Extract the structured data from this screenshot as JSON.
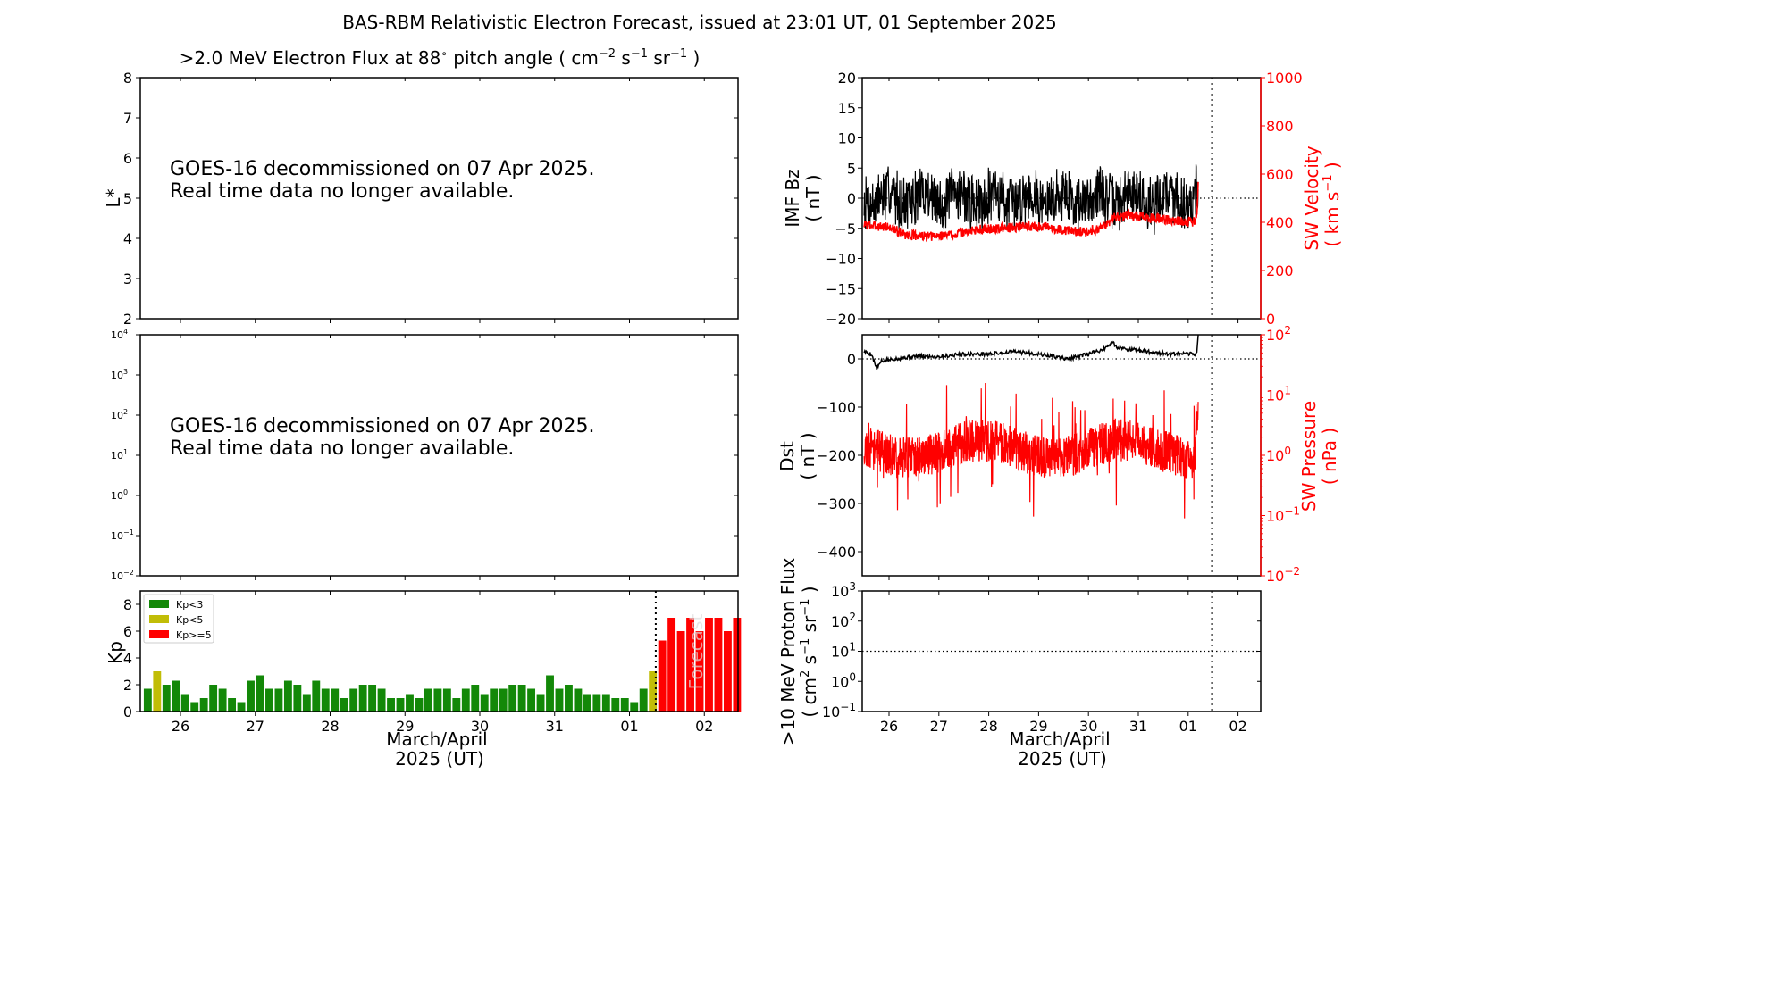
{
  "title": "BAS-RBM Relativistic Electron Forecast, issued at 23:01 UT, 01 September 2025",
  "colors": {
    "black": "#000000",
    "red": "#ff0000",
    "green": "#138808",
    "olive": "#c1bd07"
  },
  "x_ticks": [
    "26",
    "27",
    "28",
    "29",
    "30",
    "31",
    "01",
    "02"
  ],
  "x_label_line1": "March/April",
  "x_label_line2": "2025 (UT)",
  "forecast_text": "Forecast",
  "panels": {
    "flux": {
      "title_prefix": ">2.0 MeV Electron Flux at 88",
      "title_deg": "∘",
      "title_mid": " pitch angle ( cm",
      "title_sup1": "−2",
      "title_s": " s",
      "title_sup2": "−1",
      "title_sr": " sr",
      "title_sup3": "−1",
      "title_end": " )",
      "ylabel": "L*",
      "yticks": [
        "2",
        "3",
        "4",
        "5",
        "6",
        "7",
        "8"
      ],
      "message_line1": "GOES-16 decommissioned on 07 Apr 2025.",
      "message_line2": "Real time data no longer available."
    },
    "logflux": {
      "yticks": [
        "−2",
        "−1",
        "0",
        "1",
        "2",
        "3",
        "4"
      ],
      "tick_base": "10",
      "message_line1": "GOES-16 decommissioned on 07 Apr 2025.",
      "message_line2": "Real time data no longer available."
    },
    "kp": {
      "ylabel": "Kp",
      "yticks": [
        "0",
        "2",
        "4",
        "6",
        "8"
      ],
      "legend": [
        "Kp<3",
        "Kp<5",
        "Kp>=5"
      ]
    },
    "imf": {
      "ylabel_line1": "IMF Bz",
      "ylabel_line2": "( nT )",
      "yticks_left": [
        "−20",
        "−15",
        "−10",
        "−5",
        "0",
        "5",
        "10",
        "15",
        "20"
      ],
      "ylabel_right_line1": "SW Velocity",
      "ylabel_right_line2_a": "( km s",
      "ylabel_right_line2_sup": "−1",
      "ylabel_right_line2_b": " )",
      "yticks_right": [
        "0",
        "200",
        "400",
        "600",
        "800",
        "1000"
      ]
    },
    "dst": {
      "ylabel_line1": "Dst",
      "ylabel_line2": "( nT )",
      "yticks_left": [
        "−400",
        "−300",
        "−200",
        "−100",
        "0"
      ],
      "ylabel_right_line1": "SW Pressure",
      "ylabel_right_line2": "( nPa )",
      "yticks_right_exp": [
        "−2",
        "−1",
        "0",
        "1",
        "2"
      ],
      "tick_base": "10"
    },
    "proton": {
      "ylabel_line1": ">10 MeV Proton Flux",
      "ylabel_line2_a": "( cm",
      "ylabel_line2_sup1": "2",
      "ylabel_line2_b": " s",
      "ylabel_line2_sup2": "−1",
      "ylabel_line2_c": " sr",
      "ylabel_line2_sup3": "−1",
      "ylabel_line2_d": " )",
      "yticks_exp": [
        "−1",
        "0",
        "1",
        "2",
        "3"
      ],
      "tick_base": "10"
    }
  },
  "chart_data": [
    {
      "type": "bar",
      "panel": "kp",
      "title": "",
      "ylabel": "Kp",
      "ylim": [
        0,
        9
      ],
      "x_start_day": 25.5,
      "bin_days": 0.125,
      "legend_placement": "top-left",
      "values": [
        1.7,
        3.0,
        2.0,
        2.3,
        1.3,
        0.7,
        1.0,
        2.0,
        1.7,
        1.0,
        0.7,
        2.3,
        2.7,
        1.7,
        1.7,
        2.3,
        2.0,
        1.3,
        2.3,
        1.7,
        1.7,
        1.0,
        1.7,
        2.0,
        2.0,
        1.7,
        1.0,
        1.0,
        1.3,
        1.0,
        1.7,
        1.7,
        1.7,
        1.0,
        1.7,
        2.0,
        1.3,
        1.7,
        1.7,
        2.0,
        2.0,
        1.7,
        1.3,
        2.7,
        1.7,
        2.0,
        1.7,
        1.3,
        1.3,
        1.3,
        1.0,
        1.0,
        0.7,
        1.7,
        3.0,
        5.3,
        7.0,
        6.0,
        7.0,
        6.0,
        7.0,
        7.0,
        6.0,
        7.0
      ],
      "forecast_start_index": 55
    },
    {
      "type": "line",
      "panel": "imf",
      "series": [
        {
          "name": "IMF Bz",
          "axis": "left",
          "color": "#000000",
          "ylim": [
            -20,
            20
          ],
          "x_start_day": 25.5,
          "x_end_day": 32.2,
          "baseline": 0,
          "amplitude": 4.5,
          "seed": 7
        },
        {
          "name": "SW Velocity",
          "axis": "right",
          "color": "#ff0000",
          "ylim": [
            0,
            1000
          ],
          "x_start_day": 25.5,
          "x_end_day": 32.2,
          "knots": [
            [
              25.5,
              390
            ],
            [
              26.0,
              380
            ],
            [
              26.3,
              350
            ],
            [
              26.8,
              340
            ],
            [
              27.3,
              350
            ],
            [
              27.8,
              370
            ],
            [
              28.3,
              375
            ],
            [
              28.8,
              385
            ],
            [
              29.3,
              375
            ],
            [
              29.8,
              360
            ],
            [
              30.0,
              365
            ],
            [
              30.3,
              380
            ],
            [
              30.5,
              420
            ],
            [
              30.8,
              430
            ],
            [
              31.2,
              420
            ],
            [
              31.6,
              410
            ],
            [
              32.1,
              400
            ],
            [
              32.17,
              420
            ],
            [
              32.2,
              550
            ]
          ]
        }
      ],
      "forecast_line_day": 32.48
    },
    {
      "type": "line",
      "panel": "dst",
      "series": [
        {
          "name": "Dst",
          "axis": "left",
          "color": "#000000",
          "ylim": [
            -450,
            50
          ],
          "x_start_day": 25.5,
          "x_end_day": 32.2,
          "knots": [
            [
              25.5,
              15
            ],
            [
              25.65,
              10
            ],
            [
              25.7,
              -5
            ],
            [
              25.75,
              -20
            ],
            [
              25.85,
              -5
            ],
            [
              26.1,
              0
            ],
            [
              26.5,
              5
            ],
            [
              27.0,
              5
            ],
            [
              27.5,
              10
            ],
            [
              28.0,
              10
            ],
            [
              28.5,
              15
            ],
            [
              29.0,
              10
            ],
            [
              29.3,
              5
            ],
            [
              29.6,
              0
            ],
            [
              30.0,
              10
            ],
            [
              30.3,
              20
            ],
            [
              30.5,
              35
            ],
            [
              30.55,
              25
            ],
            [
              30.8,
              20
            ],
            [
              31.2,
              15
            ],
            [
              31.6,
              10
            ],
            [
              32.1,
              10
            ],
            [
              32.17,
              10
            ],
            [
              32.2,
              50
            ]
          ]
        },
        {
          "name": "SW Pressure",
          "axis": "right",
          "color": "#ff0000",
          "log": true,
          "ylim": [
            0.01,
            100
          ],
          "x_start_day": 25.5,
          "x_end_day": 32.2,
          "baseline_log10": 0.1,
          "amplitude_log10": 0.35,
          "seed": 11
        }
      ],
      "forecast_line_day": 32.48
    },
    {
      "type": "line",
      "panel": "proton",
      "series": [
        {
          "name": ">10 MeV Proton Flux",
          "axis": "left",
          "log": true,
          "ylim": [
            0.1,
            1000
          ],
          "threshold": 10
        }
      ],
      "forecast_line_day": 32.48
    }
  ]
}
